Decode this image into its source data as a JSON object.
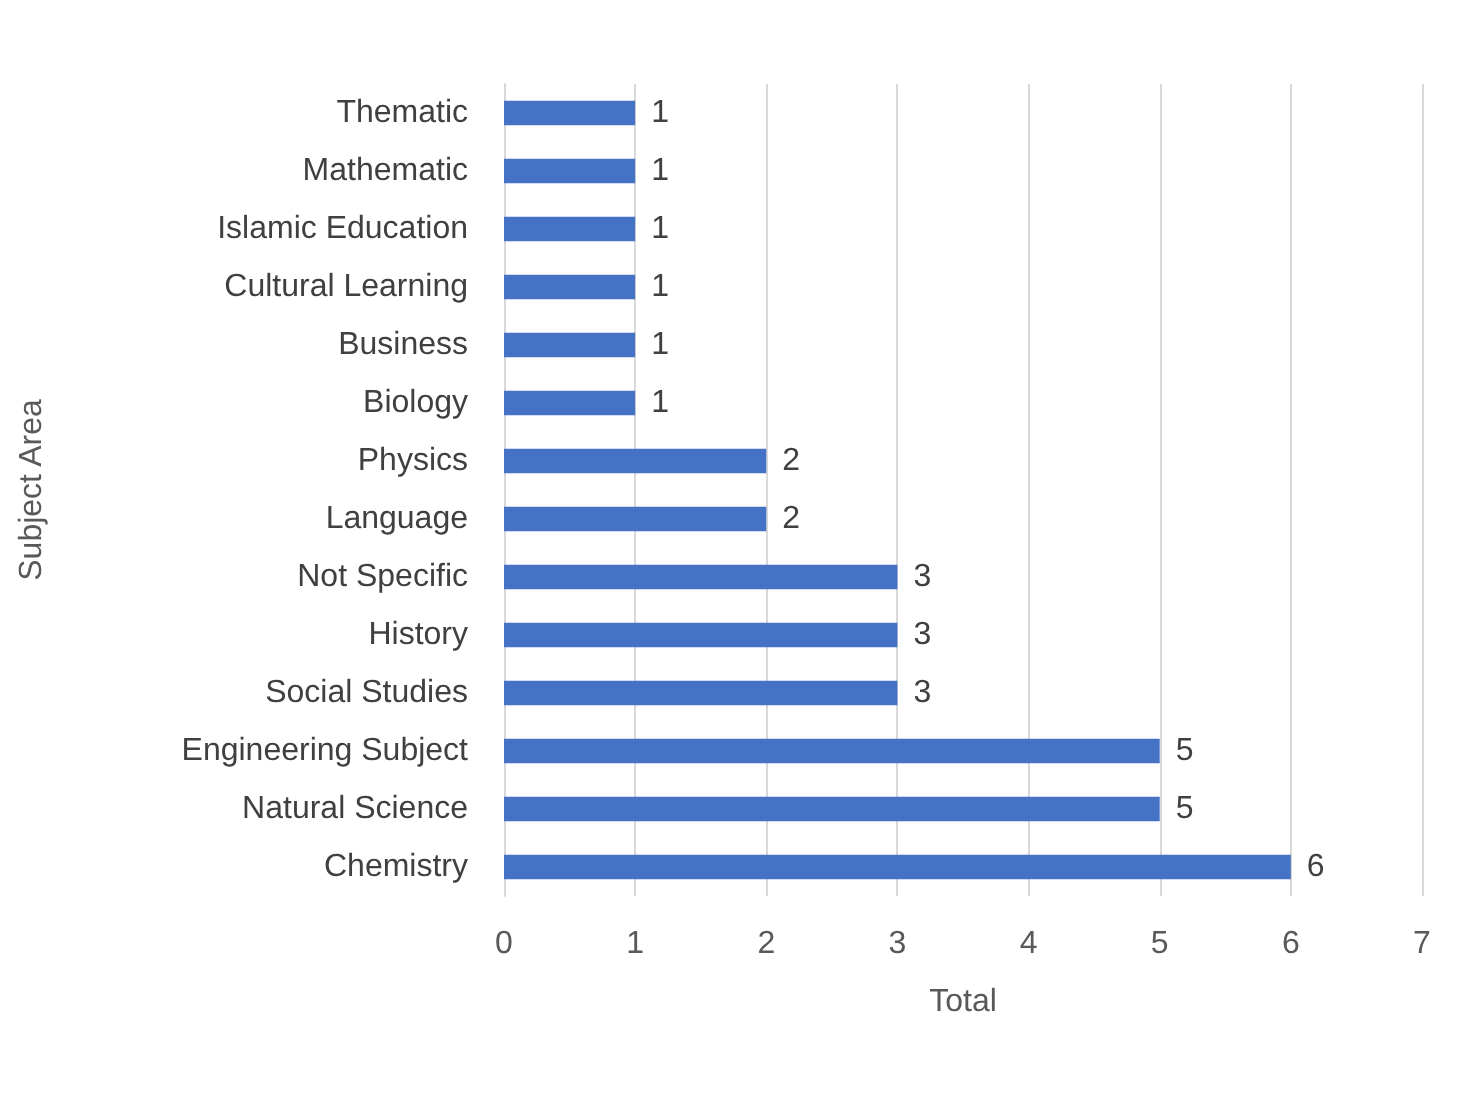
{
  "chart_data": {
    "type": "bar",
    "orientation": "horizontal",
    "xlabel": "Total",
    "ylabel": "Subject Area",
    "categories": [
      "Thematic",
      "Mathematic",
      "Islamic Education",
      "Cultural Learning",
      "Business",
      "Biology",
      "Physics",
      "Language",
      "Not Specific",
      "History",
      "Social Studies",
      "Engineering Subject",
      "Natural Science",
      "Chemistry"
    ],
    "values": [
      1,
      1,
      1,
      1,
      1,
      1,
      2,
      2,
      3,
      3,
      3,
      5,
      5,
      6
    ],
    "color": "#4472c4",
    "xlim": [
      0,
      7
    ],
    "xticks": [
      0,
      1,
      2,
      3,
      4,
      5,
      6,
      7
    ],
    "grid": "x",
    "data_labels": true
  }
}
